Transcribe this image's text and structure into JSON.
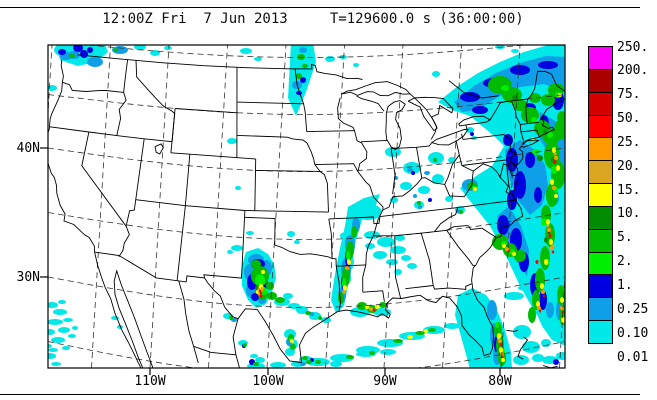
{
  "page": {
    "title": "12:00Z Fri  7 Jun 2013     T=129600.0 s (36:00:00)"
  },
  "axes": {
    "y": [
      "40N",
      "30N"
    ],
    "x": [
      "110W",
      "100W",
      "90W",
      "80W"
    ]
  },
  "colorbar": {
    "labels": [
      "250.",
      "200.",
      "75.",
      "50.",
      "25.",
      "20.",
      "15.",
      "10.",
      "5.",
      "2.",
      "1.",
      "0.25",
      "0.10",
      "0.01"
    ],
    "colors": [
      "#FF00FF",
      "#AA0000",
      "#D40000",
      "#FF0000",
      "#FF9900",
      "#DAA520",
      "#FFFF00",
      "#008B00",
      "#00BB00",
      "#00EE00",
      "#0000E0",
      "#0F9FE8",
      "#00E8E8"
    ]
  }
}
